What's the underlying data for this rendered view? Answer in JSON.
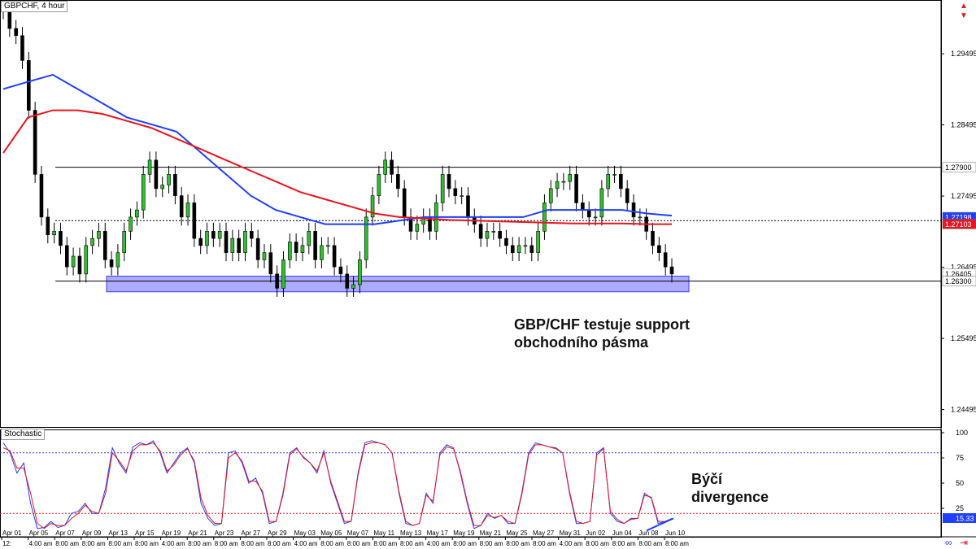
{
  "chart_title": "GBPCHF, 4 hour",
  "annotations": {
    "price_note": "GBP/CHF testuje support obchodního pásma",
    "stoch_note": "Býčí divergence"
  },
  "chart_data": [
    {
      "type": "line",
      "title": "GBPCHF, 4 hour",
      "x_labels": [
        "Apr 01",
        "Apr 05",
        "Apr 07",
        "Apr 09",
        "Apr 13",
        "Apr 15",
        "Apr 19",
        "Apr 21",
        "Apr 23",
        "Apr 27",
        "Apr 29",
        "May 03",
        "May 05",
        "May 07",
        "May 11",
        "May 13",
        "May 17",
        "May 19",
        "May 21",
        "May 25",
        "May 27",
        "May 31",
        "Jun 02",
        "Jun 04",
        "Jun 08",
        "Jun 10"
      ],
      "x_sub_labels": [
        "12:",
        "4:00 am",
        "8:00 am",
        "8:00 am",
        "8:00 am",
        "8:00 am",
        "4:00 am",
        "8:00 am",
        "8:00 am",
        "8:00 am",
        "8:00 am",
        "4:00 am",
        "8:00 am",
        "8:00 am",
        "8:00 am",
        "8:00 am",
        "4:00 am",
        "8:00 am",
        "8:00 am",
        "8:00 am",
        "8:00 am",
        "4:00 am",
        "8:00 am",
        "8:00 am",
        "8:00 am",
        "8:00 am"
      ],
      "y_ticks": [
        "1.29495",
        "1.28495",
        "1.27495",
        "1.26495",
        "1.25495",
        "1.24495"
      ],
      "ylim": [
        1.2425,
        1.3025
      ],
      "price_tags": [
        {
          "label": "1.27900",
          "value": 1.279,
          "bg": "#ffffff",
          "fg": "#000000"
        },
        {
          "label": "1.27198",
          "value": 1.27198,
          "bg": "#1f3fff",
          "fg": "#ffffff"
        },
        {
          "label": "1.27103",
          "value": 1.27103,
          "bg": "#e8141e",
          "fg": "#ffffff"
        },
        {
          "label": "1.26405",
          "value": 1.26405,
          "bg": "#ffffff",
          "fg": "#000000"
        },
        {
          "label": "1.26300",
          "value": 1.263,
          "bg": "#ffffff",
          "fg": "#000000"
        }
      ],
      "horizontal_levels": [
        {
          "value": 1.279,
          "style": "solid"
        },
        {
          "value": 1.2715,
          "style": "dotted"
        },
        {
          "value": 1.263,
          "style": "solid"
        }
      ],
      "support_zone": {
        "low": 1.2615,
        "high": 1.2637,
        "color": "#8080ff"
      },
      "closes": [
        1.301,
        1.2985,
        1.2975,
        1.294,
        1.287,
        1.278,
        1.272,
        1.2695,
        1.27,
        1.268,
        1.265,
        1.2665,
        1.264,
        1.268,
        1.269,
        1.27,
        1.266,
        1.265,
        1.267,
        1.27,
        1.272,
        1.273,
        1.278,
        1.28,
        1.276,
        1.2765,
        1.278,
        1.275,
        1.272,
        1.274,
        1.269,
        1.268,
        1.27,
        1.269,
        1.27,
        1.267,
        1.269,
        1.267,
        1.27,
        1.269,
        1.266,
        1.267,
        1.264,
        1.262,
        1.266,
        1.2685,
        1.267,
        1.268,
        1.27,
        1.266,
        1.268,
        1.268,
        1.265,
        1.264,
        1.262,
        1.2625,
        1.266,
        1.272,
        1.275,
        1.278,
        1.28,
        1.278,
        1.276,
        1.272,
        1.27,
        1.271,
        1.272,
        1.27,
        1.274,
        1.278,
        1.276,
        1.275,
        1.275,
        1.272,
        1.271,
        1.269,
        1.27,
        1.27,
        1.269,
        1.268,
        1.267,
        1.268,
        1.268,
        1.267,
        1.27,
        1.274,
        1.276,
        1.277,
        1.277,
        1.278,
        1.274,
        1.273,
        1.272,
        1.272,
        1.276,
        1.278,
        1.278,
        1.276,
        1.274,
        1.272,
        1.272,
        1.27,
        1.268,
        1.267,
        1.265,
        1.264
      ],
      "series": [
        {
          "name": "MA blue",
          "color": "#1f3fff",
          "values": [
            1.29,
            1.291,
            1.292,
            1.29,
            1.288,
            1.286,
            1.285,
            1.284,
            1.281,
            1.278,
            1.275,
            1.273,
            1.272,
            1.271,
            1.271,
            1.271,
            1.2715,
            1.272,
            1.272,
            1.272,
            1.272,
            1.272,
            1.273,
            1.273,
            1.273,
            1.273,
            1.2725,
            1.2722
          ]
        },
        {
          "name": "MA red",
          "color": "#e8141e",
          "values": [
            1.281,
            1.286,
            1.287,
            1.287,
            1.2865,
            1.2855,
            1.2845,
            1.283,
            1.2815,
            1.28,
            1.2785,
            1.277,
            1.2755,
            1.2745,
            1.2735,
            1.2725,
            1.272,
            1.2718,
            1.2716,
            1.2715,
            1.2714,
            1.2713,
            1.2712,
            1.2711,
            1.2711,
            1.2711,
            1.271,
            1.271
          ]
        }
      ]
    },
    {
      "type": "line",
      "title": "Stochastic",
      "y_ticks": [
        "100",
        "75",
        "50",
        "25"
      ],
      "ylim": [
        0,
        100
      ],
      "levels": [
        80,
        20
      ],
      "value_tag": {
        "label": "15.33",
        "value": 15.33,
        "bg": "#1f3fff",
        "fg": "#ffffff"
      },
      "series": [
        {
          "name": "%K",
          "color": "#1f3fff",
          "values": [
            90,
            80,
            60,
            70,
            30,
            5,
            6,
            12,
            6,
            8,
            20,
            22,
            30,
            20,
            20,
            45,
            85,
            70,
            60,
            86,
            90,
            88,
            92,
            80,
            60,
            70,
            80,
            85,
            70,
            30,
            15,
            8,
            10,
            80,
            82,
            70,
            50,
            55,
            40,
            10,
            12,
            40,
            80,
            85,
            75,
            70,
            60,
            82,
            50,
            30,
            10,
            12,
            60,
            90,
            92,
            90,
            88,
            80,
            40,
            10,
            8,
            10,
            40,
            30,
            80,
            88,
            85,
            60,
            30,
            5,
            8,
            20,
            15,
            18,
            10,
            10,
            40,
            80,
            90,
            88,
            86,
            85,
            80,
            40,
            10,
            10,
            12,
            80,
            85,
            20,
            12,
            10,
            15,
            15,
            40,
            35,
            10,
            12,
            15
          ]
        },
        {
          "name": "%D",
          "color": "#e8141e",
          "values": [
            85,
            82,
            65,
            65,
            40,
            10,
            5,
            10,
            8,
            8,
            15,
            20,
            28,
            22,
            20,
            40,
            80,
            72,
            62,
            82,
            88,
            88,
            90,
            82,
            62,
            68,
            78,
            84,
            72,
            35,
            18,
            10,
            10,
            75,
            80,
            72,
            52,
            52,
            42,
            12,
            12,
            38,
            78,
            84,
            76,
            70,
            62,
            80,
            52,
            32,
            12,
            12,
            58,
            88,
            90,
            90,
            88,
            80,
            42,
            12,
            8,
            10,
            38,
            32,
            78,
            86,
            84,
            62,
            32,
            8,
            8,
            18,
            16,
            18,
            12,
            10,
            38,
            78,
            88,
            88,
            86,
            84,
            80,
            42,
            12,
            10,
            12,
            78,
            84,
            22,
            14,
            10,
            14,
            15,
            38,
            36,
            12,
            12,
            14
          ]
        }
      ]
    }
  ]
}
